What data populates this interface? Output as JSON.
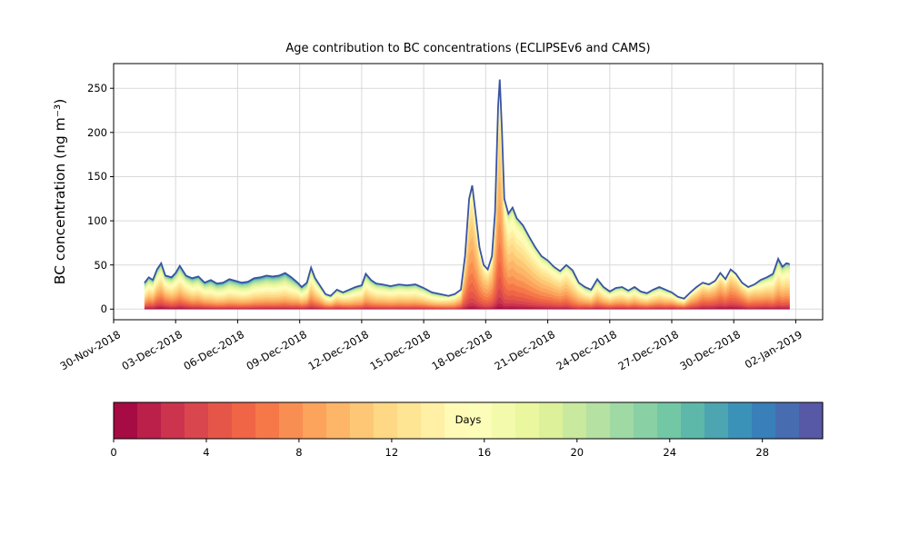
{
  "chart_data": {
    "type": "area",
    "subtype": "age-stacked-area",
    "title": "Age contribution to BC concentrations (ECLIPSEv6 and CAMS)",
    "ylabel": "BC concentration (ng m⁻³)",
    "y_ticks": [
      0,
      50,
      100,
      150,
      200,
      250
    ],
    "ylim": [
      -12,
      278
    ],
    "x_tick_labels": [
      "30-Nov-2018",
      "03-Dec-2018",
      "06-Dec-2018",
      "09-Dec-2018",
      "12-Dec-2018",
      "15-Dec-2018",
      "18-Dec-2018",
      "21-Dec-2018",
      "24-Dec-2018",
      "27-Dec-2018",
      "30-Dec-2018",
      "02-Jan-2019"
    ],
    "x_tick_days": [
      0,
      3,
      6,
      9,
      12,
      15,
      18,
      21,
      24,
      27,
      30,
      33
    ],
    "xlim_days": [
      0,
      34.3
    ],
    "grid": true,
    "n_age_layers": 30,
    "points_format": [
      "t_days_since_30_Nov_2018",
      "total_ng_m3",
      "age_mean_days",
      "age_sigma_days"
    ],
    "points": [
      [
        1.5,
        30,
        12,
        7
      ],
      [
        1.7,
        36,
        11,
        7
      ],
      [
        1.9,
        33,
        11,
        7
      ],
      [
        2.1,
        45,
        10,
        7
      ],
      [
        2.3,
        52,
        10,
        7
      ],
      [
        2.5,
        38,
        10,
        7
      ],
      [
        2.8,
        36,
        11,
        7
      ],
      [
        3.0,
        41,
        11,
        7
      ],
      [
        3.2,
        49,
        11,
        7
      ],
      [
        3.5,
        38,
        11,
        7
      ],
      [
        3.8,
        35,
        12,
        7
      ],
      [
        4.1,
        37,
        12,
        7
      ],
      [
        4.4,
        30,
        12,
        7
      ],
      [
        4.7,
        33,
        13,
        7
      ],
      [
        5.0,
        29,
        13,
        7
      ],
      [
        5.3,
        30,
        13,
        7
      ],
      [
        5.6,
        34,
        13,
        7
      ],
      [
        5.9,
        32,
        13,
        7
      ],
      [
        6.2,
        30,
        13,
        7
      ],
      [
        6.5,
        31,
        13,
        7
      ],
      [
        6.8,
        35,
        13,
        7
      ],
      [
        7.1,
        36,
        13,
        7
      ],
      [
        7.4,
        38,
        13,
        7
      ],
      [
        7.7,
        37,
        13,
        7
      ],
      [
        8.0,
        38,
        13,
        7
      ],
      [
        8.3,
        41,
        13,
        7
      ],
      [
        8.6,
        36,
        13,
        7
      ],
      [
        8.9,
        30,
        12,
        7
      ],
      [
        9.1,
        25,
        12,
        7
      ],
      [
        9.35,
        30,
        12,
        7
      ],
      [
        9.55,
        47,
        11,
        6
      ],
      [
        9.75,
        35,
        11,
        6
      ],
      [
        10.0,
        26,
        11,
        6
      ],
      [
        10.25,
        17,
        11,
        6
      ],
      [
        10.5,
        15,
        11,
        6
      ],
      [
        10.8,
        22,
        11,
        6
      ],
      [
        11.1,
        19,
        11,
        6
      ],
      [
        11.4,
        22,
        12,
        6
      ],
      [
        11.7,
        25,
        12,
        6
      ],
      [
        12.0,
        27,
        12,
        6
      ],
      [
        12.2,
        40,
        12,
        6
      ],
      [
        12.45,
        33,
        12,
        6
      ],
      [
        12.7,
        29,
        12,
        6
      ],
      [
        13.0,
        28,
        12,
        6
      ],
      [
        13.4,
        26,
        12,
        6
      ],
      [
        13.8,
        28,
        12,
        6
      ],
      [
        14.2,
        27,
        12,
        6
      ],
      [
        14.6,
        28,
        12,
        6
      ],
      [
        15.0,
        24,
        12,
        6
      ],
      [
        15.4,
        19,
        12,
        6
      ],
      [
        15.8,
        17,
        12,
        6
      ],
      [
        16.2,
        15,
        11,
        5
      ],
      [
        16.5,
        17,
        11,
        5
      ],
      [
        16.8,
        22,
        10,
        5
      ],
      [
        17.0,
        60,
        9,
        4
      ],
      [
        17.2,
        125,
        9,
        4
      ],
      [
        17.35,
        140,
        9,
        4
      ],
      [
        17.5,
        110,
        9,
        4
      ],
      [
        17.7,
        70,
        9,
        4
      ],
      [
        17.9,
        50,
        9,
        4
      ],
      [
        18.1,
        45,
        9,
        4
      ],
      [
        18.3,
        60,
        9,
        4
      ],
      [
        18.45,
        110,
        9,
        4
      ],
      [
        18.6,
        230,
        9,
        4
      ],
      [
        18.68,
        260,
        9,
        4
      ],
      [
        18.78,
        205,
        9,
        4
      ],
      [
        18.9,
        125,
        9,
        4
      ],
      [
        19.1,
        108,
        10,
        5
      ],
      [
        19.3,
        115,
        10,
        5
      ],
      [
        19.5,
        103,
        10,
        5
      ],
      [
        19.8,
        95,
        10,
        5
      ],
      [
        20.1,
        82,
        10,
        5
      ],
      [
        20.4,
        70,
        10,
        5
      ],
      [
        20.7,
        60,
        10,
        5
      ],
      [
        21.0,
        55,
        10,
        5
      ],
      [
        21.3,
        48,
        10,
        5
      ],
      [
        21.6,
        43,
        10,
        5
      ],
      [
        21.9,
        50,
        10,
        5
      ],
      [
        22.2,
        44,
        11,
        5
      ],
      [
        22.5,
        30,
        11,
        5
      ],
      [
        22.8,
        25,
        11,
        6
      ],
      [
        23.1,
        22,
        11,
        6
      ],
      [
        23.4,
        34,
        11,
        6
      ],
      [
        23.7,
        25,
        11,
        6
      ],
      [
        24.0,
        20,
        11,
        6
      ],
      [
        24.3,
        24,
        11,
        6
      ],
      [
        24.6,
        25,
        11,
        6
      ],
      [
        24.9,
        21,
        11,
        6
      ],
      [
        25.2,
        25,
        11,
        6
      ],
      [
        25.5,
        20,
        11,
        6
      ],
      [
        25.8,
        18,
        11,
        6
      ],
      [
        26.1,
        22,
        11,
        6
      ],
      [
        26.4,
        25,
        11,
        6
      ],
      [
        26.7,
        22,
        11,
        6
      ],
      [
        27.0,
        19,
        10,
        6
      ],
      [
        27.3,
        14,
        10,
        6
      ],
      [
        27.6,
        12,
        10,
        6
      ],
      [
        27.9,
        19,
        9,
        5
      ],
      [
        28.2,
        25,
        9,
        5
      ],
      [
        28.5,
        30,
        8,
        5
      ],
      [
        28.8,
        28,
        8,
        5
      ],
      [
        29.1,
        32,
        8,
        5
      ],
      [
        29.35,
        41,
        8,
        5
      ],
      [
        29.6,
        34,
        8,
        5
      ],
      [
        29.85,
        45,
        8,
        5
      ],
      [
        30.1,
        40,
        8,
        5
      ],
      [
        30.4,
        30,
        8,
        5
      ],
      [
        30.7,
        25,
        9,
        5
      ],
      [
        31.0,
        28,
        9,
        5
      ],
      [
        31.3,
        33,
        10,
        6
      ],
      [
        31.6,
        36,
        10,
        6
      ],
      [
        31.9,
        40,
        11,
        6
      ],
      [
        32.15,
        57,
        11,
        6
      ],
      [
        32.35,
        48,
        11,
        6
      ],
      [
        32.55,
        52,
        11,
        6
      ],
      [
        32.7,
        51,
        11,
        6
      ]
    ],
    "colorbar": {
      "label": "Days",
      "ticks": [
        0,
        4,
        8,
        12,
        16,
        20,
        24,
        28
      ],
      "vmin": 0,
      "vmax": 30.6,
      "segments": 30,
      "colormap_name": "Spectral"
    },
    "colormap_stops": [
      [
        0.0,
        "#9e0142"
      ],
      [
        0.1,
        "#d53e4f"
      ],
      [
        0.2,
        "#f46d43"
      ],
      [
        0.3,
        "#fdae61"
      ],
      [
        0.4,
        "#fee08b"
      ],
      [
        0.5,
        "#ffffbf"
      ],
      [
        0.6,
        "#e6f598"
      ],
      [
        0.7,
        "#abdda4"
      ],
      [
        0.8,
        "#66c2a5"
      ],
      [
        0.9,
        "#3288bd"
      ],
      [
        1.0,
        "#5e4fa2"
      ]
    ],
    "colors": {
      "envelope_line": "#3a53a4",
      "grid": "#d9d9d9",
      "axes_border": "#000000",
      "background": "#ffffff",
      "text": "#000000"
    }
  }
}
